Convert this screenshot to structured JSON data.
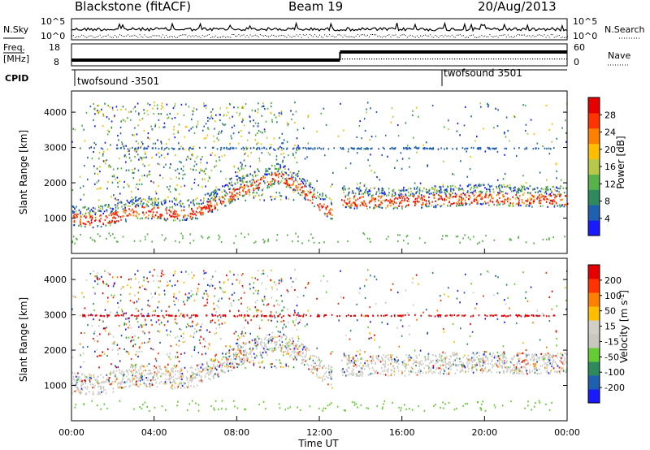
{
  "header": {
    "station": "Blackstone (fitACF)",
    "beam": "Beam 19",
    "date": "20/Aug/2013"
  },
  "top_panels": {
    "nsky_label": "N.Sky",
    "nsearch_label": "N.Search",
    "noise_ticks_left": [
      "10^5",
      "10^0"
    ],
    "noise_ticks_right": [
      "10^5",
      "10^0"
    ],
    "freq_label": "Freq.",
    "freq_unit": "[MHz]",
    "freq_ticks": [
      "18",
      "8"
    ],
    "nave_label": "Nave",
    "nave_ticks": [
      "60",
      "0"
    ],
    "cpid_label": "CPID",
    "cpid_modes": [
      {
        "name": "twofsound -3501",
        "start_hour": 0
      },
      {
        "name": "twofsound 3501",
        "start_hour": 18
      }
    ]
  },
  "colors": {
    "power_scale": [
      "#1a1aff",
      "#1f5fb0",
      "#2e8a5e",
      "#58b24a",
      "#b8c94a",
      "#ffbf00",
      "#ff7f00",
      "#ff3300",
      "#e60000"
    ],
    "velocity_scale": [
      "#1a1aff",
      "#1f5fb0",
      "#2e8a5e",
      "#66cc33",
      "#c8c8c0",
      "#d0d0c8",
      "#ffbf00",
      "#ff7f00",
      "#ff3300",
      "#e60000"
    ]
  },
  "chart_data": [
    {
      "type": "heatmap",
      "name": "power",
      "ylabel": "Slant Range [km]",
      "ylim": [
        0,
        4600
      ],
      "y_ticks": [
        "4000",
        "3000",
        "2000",
        "1000"
      ],
      "colorbar_label": "Power [dB]",
      "colorbar_ticks": [
        "28",
        "24",
        "20",
        "16",
        "12",
        "8",
        "4"
      ],
      "colorbar_range": [
        0,
        32
      ],
      "main_echo_band": {
        "x_hours": [
          0,
          1,
          2,
          3,
          4,
          5,
          6,
          7,
          8,
          9,
          10,
          11,
          12,
          13,
          13.05,
          14,
          16,
          18,
          20,
          22,
          24
        ],
        "y_km": [
          1000,
          950,
          1050,
          1200,
          1200,
          1120,
          1200,
          1450,
          1750,
          2000,
          2200,
          1900,
          1400,
          1000,
          1500,
          1500,
          1500,
          1550,
          1600,
          1550,
          1550
        ]
      }
    },
    {
      "type": "heatmap",
      "name": "velocity",
      "ylabel": "Slant Range [km]",
      "ylim": [
        0,
        4600
      ],
      "y_ticks": [
        "4000",
        "3000",
        "2000",
        "1000"
      ],
      "colorbar_label": "Velocity [m s^-1]",
      "colorbar_ticks": [
        "200",
        "100",
        "50",
        "15",
        "-15",
        "-50",
        "-100",
        "-200"
      ],
      "x_ticks": [
        "00:00",
        "04:00",
        "08:00",
        "12:00",
        "16:00",
        "20:00",
        "00:00"
      ],
      "xlabel": "Time UT",
      "xlim": [
        0,
        24
      ]
    }
  ]
}
